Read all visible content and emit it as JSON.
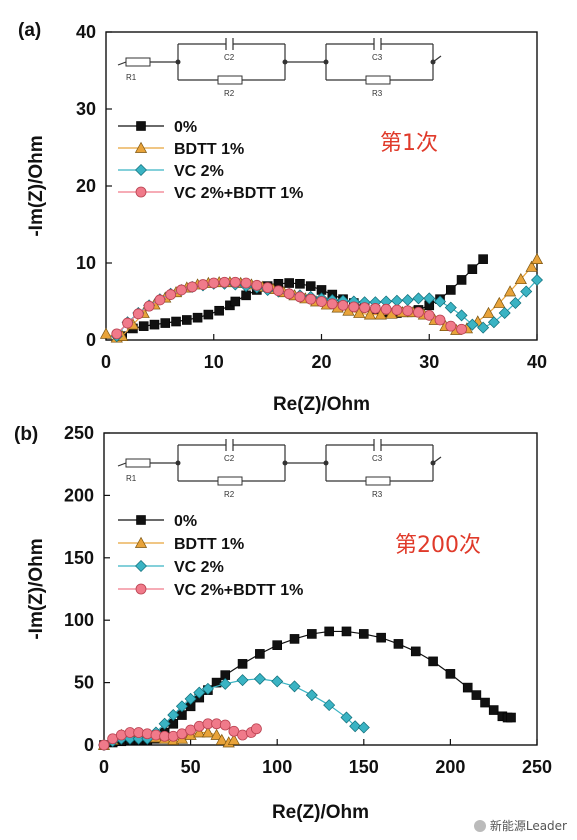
{
  "watermark": "新能源Leader",
  "chart_data": [
    {
      "type": "scatter",
      "panel_label": "(a)",
      "annotation": "第1次",
      "xlabel": "Re(Z)/Ohm",
      "ylabel": "-Im(Z)/Ohm",
      "xlim": [
        0,
        40
      ],
      "ylim": [
        0,
        40
      ],
      "xticks": [
        0,
        10,
        20,
        30,
        40
      ],
      "yticks": [
        0,
        10,
        20,
        30,
        40
      ],
      "circuit": {
        "R1": "R1",
        "C2": "C2",
        "R2": "R2",
        "C3": "C3",
        "R3": "R3"
      },
      "legend_position": "top-left",
      "series": [
        {
          "name": "0%",
          "marker": "square",
          "color": "#111111",
          "x": [
            1.5,
            2.5,
            3.5,
            4.5,
            5.5,
            6.5,
            7.5,
            8.5,
            9.5,
            10.5,
            11.5,
            12,
            13,
            14,
            15,
            16,
            17,
            18,
            19,
            20,
            21,
            22,
            23,
            24,
            25,
            26,
            27,
            28,
            29,
            30,
            31,
            32,
            33,
            34,
            35
          ],
          "y": [
            0.5,
            1.5,
            1.8,
            2.0,
            2.2,
            2.4,
            2.6,
            2.9,
            3.3,
            3.8,
            4.5,
            5.0,
            5.8,
            6.5,
            7.0,
            7.3,
            7.4,
            7.3,
            7.0,
            6.5,
            5.9,
            5.3,
            4.8,
            4.3,
            3.9,
            3.6,
            3.5,
            3.6,
            3.9,
            4.5,
            5.3,
            6.5,
            7.8,
            9.2,
            10.5
          ]
        },
        {
          "name": "BDTT 1%",
          "marker": "triangle",
          "color": "#e8a33a",
          "x": [
            0,
            1,
            1.5,
            2.5,
            3.5,
            4.5,
            5.5,
            6.5,
            7.5,
            8.5,
            9.5,
            10.5,
            11.5,
            12.5,
            13.5,
            14.5,
            15.5,
            16.5,
            17.5,
            18.5,
            19.5,
            20.5,
            21.5,
            22.5,
            23.5,
            24.5,
            25.5,
            26.5,
            27.5,
            28.5,
            29.5,
            30.5,
            31.5,
            32.5,
            33.5,
            34.5,
            35.5,
            36.5,
            37.5,
            38.5,
            39.5,
            40
          ],
          "y": [
            0.8,
            0.3,
            0.5,
            2.0,
            3.5,
            4.6,
            5.5,
            6.2,
            6.8,
            7.2,
            7.4,
            7.5,
            7.5,
            7.4,
            7.2,
            6.9,
            6.6,
            6.2,
            5.8,
            5.4,
            5.0,
            4.6,
            4.2,
            3.8,
            3.5,
            3.3,
            3.3,
            3.4,
            3.6,
            3.6,
            3.3,
            2.6,
            1.8,
            1.3,
            1.5,
            2.4,
            3.5,
            4.8,
            6.3,
            7.9,
            9.5,
            10.5
          ]
        },
        {
          "name": "VC 2%",
          "marker": "diamond",
          "color": "#3ab3c3",
          "x": [
            1,
            2,
            3,
            4,
            5,
            6,
            7,
            8,
            9,
            10,
            11,
            12,
            13,
            14,
            15,
            16,
            17,
            18,
            19,
            20,
            21,
            22,
            23,
            24,
            25,
            26,
            27,
            28,
            29,
            30,
            31,
            32,
            33,
            34,
            35,
            36,
            37,
            38,
            39,
            40
          ],
          "y": [
            0.5,
            2.3,
            3.5,
            4.5,
            5.3,
            6.0,
            6.5,
            6.9,
            7.1,
            7.3,
            7.3,
            7.2,
            7.0,
            6.8,
            6.5,
            6.3,
            6.0,
            5.8,
            5.6,
            5.4,
            5.2,
            5.1,
            5.0,
            4.9,
            4.9,
            5.0,
            5.1,
            5.2,
            5.4,
            5.4,
            5.0,
            4.2,
            3.2,
            2.0,
            1.6,
            2.3,
            3.5,
            4.8,
            6.3,
            7.8
          ]
        },
        {
          "name": "VC 2%+BDTT 1%",
          "marker": "circle",
          "color": "#f07a8a",
          "x": [
            1,
            2,
            3,
            4,
            5,
            6,
            7,
            8,
            9,
            10,
            11,
            12,
            13,
            14,
            15,
            16,
            17,
            18,
            19,
            20,
            21,
            22,
            23,
            24,
            25,
            26,
            27,
            28,
            29,
            30,
            31,
            32,
            33
          ],
          "y": [
            0.8,
            2.2,
            3.4,
            4.4,
            5.2,
            5.9,
            6.5,
            6.9,
            7.2,
            7.4,
            7.5,
            7.5,
            7.4,
            7.1,
            6.8,
            6.4,
            6.0,
            5.6,
            5.3,
            5.0,
            4.7,
            4.5,
            4.3,
            4.2,
            4.1,
            4.0,
            3.9,
            3.8,
            3.6,
            3.2,
            2.6,
            1.8,
            1.4
          ]
        }
      ]
    },
    {
      "type": "scatter",
      "panel_label": "(b)",
      "annotation": "第200次",
      "xlabel": "Re(Z)/Ohm",
      "ylabel": "-Im(Z)/Ohm",
      "xlim": [
        0,
        250
      ],
      "ylim": [
        0,
        250
      ],
      "xticks": [
        0,
        50,
        100,
        150,
        200,
        250
      ],
      "yticks": [
        0,
        50,
        100,
        150,
        200,
        250
      ],
      "circuit": {
        "R1": "R1",
        "C2": "C2",
        "R2": "R2",
        "C3": "C3",
        "R3": "R3"
      },
      "legend_position": "top-left",
      "series": [
        {
          "name": "0%",
          "marker": "square",
          "color": "#111111",
          "x": [
            0,
            5,
            10,
            15,
            20,
            25,
            30,
            35,
            40,
            45,
            50,
            55,
            60,
            65,
            70,
            80,
            90,
            100,
            110,
            120,
            130,
            140,
            150,
            160,
            170,
            180,
            190,
            200,
            210,
            215,
            220,
            225,
            230,
            233,
            235
          ],
          "y": [
            0,
            2,
            3,
            4,
            4,
            4,
            5,
            10,
            17,
            24,
            31,
            38,
            44,
            50,
            56,
            65,
            73,
            80,
            85,
            89,
            91,
            91,
            89,
            86,
            81,
            75,
            67,
            57,
            46,
            40,
            34,
            28,
            23,
            22,
            22
          ]
        },
        {
          "name": "BDTT 1%",
          "marker": "triangle",
          "color": "#e8a33a",
          "x": [
            0,
            5,
            10,
            15,
            20,
            25,
            30,
            35,
            40,
            45,
            50,
            55,
            60,
            65,
            68,
            72,
            75
          ],
          "y": [
            0,
            4,
            8,
            9,
            9,
            8,
            6,
            5,
            4,
            5,
            8,
            10,
            10,
            8,
            4,
            2,
            4
          ]
        },
        {
          "name": "VC 2%",
          "marker": "diamond",
          "color": "#3ab3c3",
          "x": [
            0,
            5,
            10,
            15,
            20,
            25,
            30,
            35,
            40,
            45,
            50,
            55,
            60,
            70,
            80,
            90,
            100,
            110,
            120,
            130,
            140,
            145,
            150
          ],
          "y": [
            0,
            3,
            5,
            5,
            5,
            5,
            10,
            17,
            24,
            31,
            37,
            42,
            45,
            49,
            52,
            53,
            51,
            47,
            40,
            32,
            22,
            15,
            14
          ]
        },
        {
          "name": "VC 2%+BDTT 1%",
          "marker": "circle",
          "color": "#f07a8a",
          "x": [
            0,
            5,
            10,
            15,
            20,
            25,
            30,
            35,
            40,
            45,
            50,
            55,
            60,
            65,
            70,
            75,
            80,
            85,
            88
          ],
          "y": [
            0,
            5,
            8,
            10,
            10,
            9,
            8,
            7,
            7,
            9,
            12,
            15,
            17,
            17,
            16,
            11,
            8,
            10,
            13
          ]
        }
      ]
    }
  ]
}
